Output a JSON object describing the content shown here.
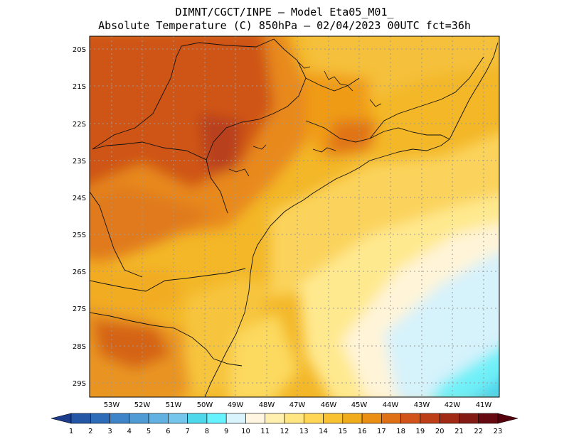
{
  "header": {
    "line1": "DIMNT/CGCT/INPE –  Model Eta05_M01_",
    "line2": "Absolute Temperature (C) 850hPa –  02/04/2023 00UTC fct=36h"
  },
  "map": {
    "lat_labels": [
      "20S",
      "21S",
      "22S",
      "23S",
      "24S",
      "25S",
      "26S",
      "27S",
      "28S",
      "29S"
    ],
    "lon_labels": [
      "53W",
      "52W",
      "51W",
      "50W",
      "49W",
      "48W",
      "47W",
      "46W",
      "45W",
      "44W",
      "43W",
      "42W",
      "41W"
    ],
    "lat_range_deg_south": [
      19.5,
      29.4
    ],
    "lon_range_deg_west": [
      53.4,
      40.8
    ]
  },
  "colorbar": {
    "labels": [
      "1",
      "2",
      "3",
      "4",
      "5",
      "6",
      "7",
      "8",
      "9",
      "10",
      "11",
      "12",
      "13",
      "14",
      "15",
      "16",
      "17",
      "18",
      "19",
      "20",
      "21",
      "22",
      "23"
    ],
    "colors": [
      "#1c3c8c",
      "#2456a6",
      "#2c6cb8",
      "#3d84c9",
      "#4f9bd6",
      "#61b1e2",
      "#74c6ec",
      "#4dd8ec",
      "#66f2ff",
      "#d9f4fc",
      "#fff5e0",
      "#fff0b0",
      "#ffe680",
      "#ffd655",
      "#f8c232",
      "#f0ac1a",
      "#eb8f14",
      "#e07015",
      "#d2541a",
      "#bc3f18",
      "#a02a15",
      "#841a14",
      "#650a10",
      "#55000c"
    ]
  }
}
